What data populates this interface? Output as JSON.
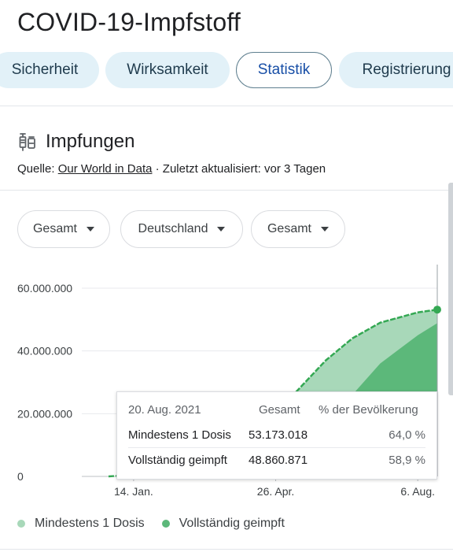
{
  "page": {
    "title": "COVID-19-Impfstoff"
  },
  "tabs": [
    {
      "label": "Sicherheit"
    },
    {
      "label": "Wirksamkeit"
    },
    {
      "label": "Statistik",
      "active": true
    },
    {
      "label": "Registrierung"
    }
  ],
  "section": {
    "icon": "syringe-icon",
    "title": "Impfungen",
    "source_prefix": "Quelle: ",
    "source_link": "Our World in Data",
    "source_suffix": " · Zuletzt aktualisiert: vor 3 Tagen"
  },
  "filters": [
    {
      "label": "Gesamt"
    },
    {
      "label": "Deutschland"
    },
    {
      "label": "Gesamt"
    }
  ],
  "tooltip": {
    "date": "20. Aug. 2021",
    "col_total": "Gesamt",
    "col_percent": "% der Bevölkerung",
    "rows": [
      {
        "label": "Mindestens 1 Dosis",
        "total": "53.173.018",
        "percent": "64,0 %"
      },
      {
        "label": "Vollständig geimpft",
        "total": "48.860.871",
        "percent": "58,9 %"
      }
    ]
  },
  "colors": {
    "light_series": "#a8d8b9",
    "dark_series": "#5cb87a",
    "line": "#34a853",
    "light_dot": "#a8d8b9",
    "dark_dot": "#5cb87a"
  },
  "chart_data": {
    "type": "area",
    "x": [
      "2020-12-27",
      "2021-01-14",
      "2021-02-15",
      "2021-03-15",
      "2021-04-01",
      "2021-04-26",
      "2021-05-15",
      "2021-06-01",
      "2021-06-20",
      "2021-07-10",
      "2021-08-06",
      "2021-08-20"
    ],
    "series": [
      {
        "name": "Mindestens 1 Dosis",
        "values": [
          0,
          500000,
          3500000,
          7000000,
          11000000,
          20000000,
          29000000,
          37000000,
          44000000,
          49000000,
          52300000,
          53173018
        ]
      },
      {
        "name": "Vollständig geimpft",
        "values": [
          0,
          0,
          1500000,
          3000000,
          4000000,
          6000000,
          10000000,
          16000000,
          26000000,
          36000000,
          45000000,
          48860871
        ]
      }
    ],
    "y_ticks": [
      "60.000.000",
      "40.000.000",
      "20.000.000",
      "0"
    ],
    "x_ticks": [
      "14. Jan.",
      "26. Apr.",
      "6. Aug."
    ],
    "x_tick_dates": [
      "2021-01-14",
      "2021-04-26",
      "2021-08-06"
    ],
    "ylim": [
      0,
      60000000
    ],
    "xlim": [
      "2020-12-27",
      "2021-08-20"
    ],
    "grid": true,
    "legend": "bottom-left"
  }
}
